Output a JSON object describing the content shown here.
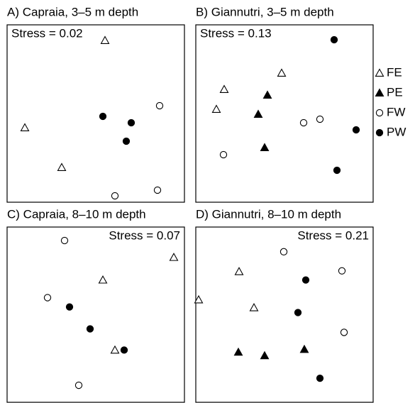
{
  "chart_data": [
    {
      "type": "scatter",
      "title": "A) Capraia, 3–5 m depth",
      "annotation": "Stress = 0.02",
      "annotation_position": "top-left",
      "xlim": [
        0,
        100
      ],
      "ylim": [
        0,
        100
      ],
      "series": [
        {
          "x": [
            55.2,
            10,
            30.8
          ],
          "values": [
            91.2,
            42,
            19.6
          ]
        },
        {
          "x": [],
          "values": []
        },
        {
          "x": [
            86,
            60.8,
            84.8
          ],
          "values": [
            54.4,
            3.6,
            6.8
          ]
        },
        {
          "x": [
            54,
            70,
            67.2
          ],
          "values": [
            48.4,
            44.8,
            34.4
          ]
        }
      ]
    },
    {
      "type": "scatter",
      "title": "B) Giannutri, 3–5 m depth",
      "annotation": "Stress = 0.13",
      "annotation_position": "top-left",
      "xlim": [
        0,
        100
      ],
      "ylim": [
        0,
        100
      ],
      "series": [
        {
          "x": [
            48.4,
            16,
            11.6
          ],
          "values": [
            72.8,
            63.6,
            52.4
          ]
        },
        {
          "x": [
            40.4,
            35.2,
            38.8
          ],
          "values": [
            60.4,
            49.6,
            30.8
          ]
        },
        {
          "x": [
            70,
            60.8,
            15.6
          ],
          "values": [
            46.8,
            44.8,
            26.8
          ]
        },
        {
          "x": [
            78,
            90.4,
            79.6
          ],
          "values": [
            91.6,
            40.8,
            18
          ]
        }
      ]
    },
    {
      "type": "scatter",
      "title": "C) Capraia, 8–10 m depth",
      "annotation": "Stress = 0.07",
      "annotation_position": "top-right",
      "xlim": [
        0,
        100
      ],
      "ylim": [
        0,
        100
      ],
      "series": [
        {
          "x": [
            94,
            54,
            60.8
          ],
          "values": [
            82.7,
            69.8,
            29.8
          ]
        },
        {
          "x": [],
          "values": []
        },
        {
          "x": [
            32.4,
            22.8,
            40.4
          ],
          "values": [
            92.3,
            59.7,
            9.7
          ]
        },
        {
          "x": [
            35.2,
            46.8,
            66
          ],
          "values": [
            54.4,
            41.9,
            29.8
          ]
        }
      ]
    },
    {
      "type": "scatter",
      "title": "D) Giannutri, 8–10 m depth",
      "annotation": "Stress = 0.21",
      "annotation_position": "top-right",
      "xlim": [
        0,
        100
      ],
      "ylim": [
        0,
        100
      ],
      "series": [
        {
          "x": [
            24.4,
            32.8,
            1.6
          ],
          "values": [
            74.6,
            54,
            58.5
          ]
        },
        {
          "x": [
            24,
            38.8,
            61.2
          ],
          "values": [
            28.6,
            26.6,
            30.2
          ]
        },
        {
          "x": [
            49.6,
            82.4,
            83.6
          ],
          "values": [
            85.9,
            75,
            39.9
          ]
        },
        {
          "x": [
            62,
            57.6,
            70
          ],
          "values": [
            69.8,
            51.2,
            13.7
          ]
        }
      ]
    }
  ],
  "legend": {
    "position": "right",
    "entries": [
      {
        "name": "FE",
        "marker": "open-triangle"
      },
      {
        "name": "PE",
        "marker": "filled-triangle"
      },
      {
        "name": "FW",
        "marker": "open-circle"
      },
      {
        "name": "PW",
        "marker": "filled-circle"
      }
    ]
  }
}
